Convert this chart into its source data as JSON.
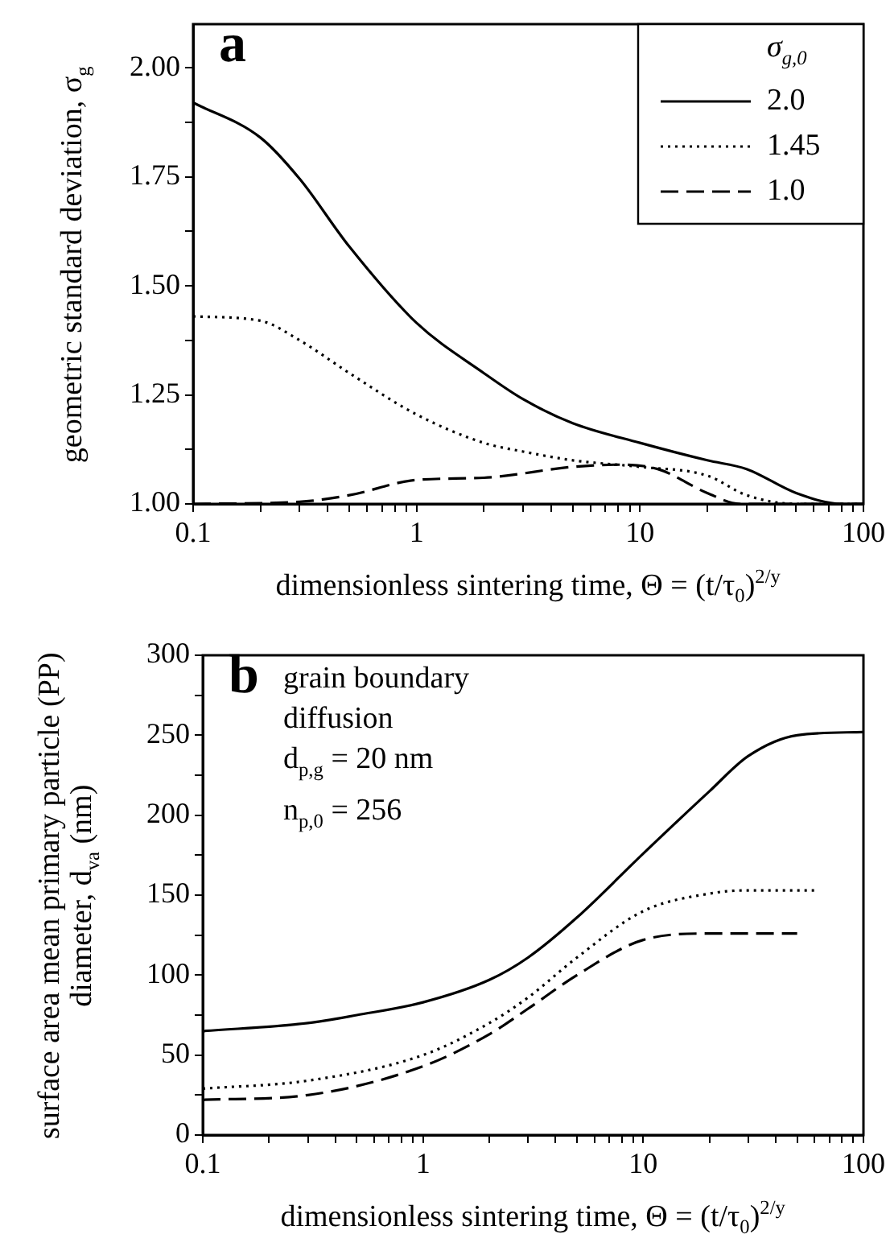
{
  "chart_data": [
    {
      "type": "line",
      "xlabel": "dimensionless sintering time, Θ = (t/τ$_{0}$)$^{2/y}$",
      "ylabel": "geometric standard deviation, σ$_{g}$",
      "legend_title": "σ$_{g,0}$",
      "legend": "top right",
      "grid": false,
      "log": "x",
      "marker": "none",
      "xlim": [
        0.1,
        100
      ],
      "xticks": [
        0.1,
        {
          "value": 0.2,
          "label": null
        },
        {
          "value": 0.3,
          "label": null
        },
        {
          "value": 0.4,
          "label": null
        },
        {
          "value": 0.5,
          "label": null
        },
        {
          "value": 0.6,
          "label": null
        },
        {
          "value": 0.7,
          "label": null
        },
        {
          "value": 0.8,
          "label": null
        },
        {
          "value": 0.9,
          "label": null
        },
        1,
        {
          "value": 2,
          "label": null
        },
        {
          "value": 3,
          "label": null
        },
        {
          "value": 4,
          "label": null
        },
        {
          "value": 5,
          "label": null
        },
        {
          "value": 6,
          "label": null
        },
        {
          "value": 7,
          "label": null
        },
        {
          "value": 8,
          "label": null
        },
        {
          "value": 9,
          "label": null
        },
        10,
        {
          "value": 20,
          "label": null
        },
        {
          "value": 30,
          "label": null
        },
        {
          "value": 40,
          "label": null
        },
        {
          "value": 50,
          "label": null
        },
        {
          "value": 60,
          "label": null
        },
        {
          "value": 70,
          "label": null
        },
        {
          "value": 80,
          "label": null
        },
        {
          "value": 90,
          "label": null
        },
        100
      ],
      "ylim": [
        1,
        2.1
      ],
      "yticks": [
        {
          "value": 1,
          "label": "1.00"
        },
        {
          "value": 1.125,
          "label": null
        },
        {
          "value": 1.25,
          "label": "1.25"
        },
        {
          "value": 1.375,
          "label": null
        },
        {
          "value": 1.5,
          "label": "1.50"
        },
        {
          "value": 1.625,
          "label": null
        },
        {
          "value": 1.75,
          "label": "1.75"
        },
        {
          "value": 1.875,
          "label": null
        },
        {
          "value": 2,
          "label": "2.00"
        }
      ],
      "annotations": [
        "a"
      ],
      "series": [
        {
          "name": "2.0",
          "color": "#000000",
          "line_style": "solid",
          "x": [
            0.1,
            0.2,
            0.3,
            0.5,
            1,
            2,
            3,
            5,
            10,
            20,
            30,
            50,
            80,
            100
          ],
          "values": [
            1.92,
            1.84,
            1.745,
            1.59,
            1.415,
            1.3,
            1.24,
            1.185,
            1.14,
            1.1,
            1.08,
            1.025,
            1.0,
            1.0
          ]
        },
        {
          "name": "1.45",
          "color": "#000000",
          "line_style": "dotted",
          "x": [
            0.1,
            0.2,
            0.3,
            0.5,
            1,
            2,
            3,
            5,
            10,
            20,
            30,
            50,
            100
          ],
          "values": [
            1.43,
            1.42,
            1.375,
            1.3,
            1.205,
            1.14,
            1.12,
            1.1,
            1.085,
            1.065,
            1.02,
            1.0,
            1.0
          ]
        },
        {
          "name": "1.0",
          "color": "#000000",
          "line_style": "dashed",
          "x": [
            0.1,
            0.3,
            0.5,
            1,
            2,
            5,
            8,
            12,
            20,
            28,
            100
          ],
          "values": [
            1.0,
            1.005,
            1.02,
            1.055,
            1.06,
            1.085,
            1.09,
            1.08,
            1.025,
            1.0,
            1.0
          ]
        }
      ]
    },
    {
      "type": "line",
      "xlabel": "dimensionless sintering time, Θ = (t/τ$_{0}$)$^{2/y}$",
      "ylabel": "surface area mean primary particle (PP) diameter, d$_{va}$ (nm)",
      "grid": false,
      "log": "x",
      "marker": "none",
      "xlim": [
        0.1,
        100
      ],
      "xticks": [
        0.1,
        {
          "value": 0.2,
          "label": null
        },
        {
          "value": 0.3,
          "label": null
        },
        {
          "value": 0.4,
          "label": null
        },
        {
          "value": 0.5,
          "label": null
        },
        {
          "value": 0.6,
          "label": null
        },
        {
          "value": 0.7,
          "label": null
        },
        {
          "value": 0.8,
          "label": null
        },
        {
          "value": 0.9,
          "label": null
        },
        1,
        {
          "value": 2,
          "label": null
        },
        {
          "value": 3,
          "label": null
        },
        {
          "value": 4,
          "label": null
        },
        {
          "value": 5,
          "label": null
        },
        {
          "value": 6,
          "label": null
        },
        {
          "value": 7,
          "label": null
        },
        {
          "value": 8,
          "label": null
        },
        {
          "value": 9,
          "label": null
        },
        10,
        {
          "value": 20,
          "label": null
        },
        {
          "value": 30,
          "label": null
        },
        {
          "value": 40,
          "label": null
        },
        {
          "value": 50,
          "label": null
        },
        {
          "value": 60,
          "label": null
        },
        {
          "value": 70,
          "label": null
        },
        {
          "value": 80,
          "label": null
        },
        {
          "value": 90,
          "label": null
        },
        100
      ],
      "ylim": [
        0,
        300
      ],
      "yticks": [
        0,
        {
          "value": 25,
          "label": null
        },
        50,
        {
          "value": 75,
          "label": null
        },
        100,
        {
          "value": 125,
          "label": null
        },
        150,
        {
          "value": 175,
          "label": null
        },
        200,
        {
          "value": 225,
          "label": null
        },
        250,
        {
          "value": 275,
          "label": null
        },
        300
      ],
      "annotations": [
        "b",
        "grain boundary diffusion",
        "d$_{p,g}$ = 20 nm",
        "n$_{p,0}$ = 256"
      ],
      "series": [
        {
          "color": "#000000",
          "line_style": "solid",
          "x": [
            0.1,
            0.3,
            0.5,
            1,
            2,
            3,
            5,
            10,
            20,
            30,
            50,
            100
          ],
          "values": [
            65,
            70,
            75,
            83,
            97,
            111,
            136,
            176,
            215,
            237,
            250,
            252
          ]
        },
        {
          "color": "#000000",
          "line_style": "dotted",
          "x": [
            0.1,
            0.3,
            1,
            2,
            3,
            5,
            10,
            20,
            30,
            60
          ],
          "values": [
            29,
            34,
            50,
            70,
            86,
            111,
            140,
            151,
            153,
            153
          ]
        },
        {
          "color": "#000000",
          "line_style": "dashed",
          "x": [
            0.1,
            0.3,
            1,
            2,
            3,
            5,
            10,
            20,
            50
          ],
          "values": [
            22,
            25,
            43,
            63,
            79,
            100,
            122,
            126,
            126
          ]
        }
      ]
    }
  ]
}
